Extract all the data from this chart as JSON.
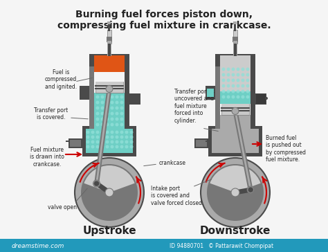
{
  "title_line1": "Burning fuel forces piston down,",
  "title_line2": "compressing fuel mixture in crankcase.",
  "label_upstroke": "Upstroke",
  "label_downstroke": "Downstroke",
  "label_fuel_compressed": "Fuel is\ncompressed\nand ignited.",
  "label_transfer_covered": "Transfer port\nis covered.",
  "label_fuel_mixture": "Fuel mixture\nis drawn into\ncrankcase.",
  "label_valve_open": "valve open",
  "label_crankcase": "crankcase",
  "label_transfer_uncovered": "Transfer port is\nuncovered and\nfuel mixture\nforced into\ncylinder.",
  "label_intake_covered": "Intake port\nis covered and\nvalve forced closed.",
  "label_burned_fuel": "Burned fuel\nis pushed out\nby compressed\nfuel mixture.",
  "bg_color": "#f5f5f5",
  "dg": "#4a4a4a",
  "mg": "#777777",
  "lg": "#aaaaaa",
  "llg": "#cccccc",
  "sv": "#c8c8c8",
  "teal": "#6ecfc5",
  "orange": "#e05515",
  "red": "#cc0000",
  "text_color": "#222222",
  "footer_bg": "#2299bb",
  "id_text": "ID 94880701   © Pattarawit Chompipat",
  "watermark_text": "dreamstime.com"
}
